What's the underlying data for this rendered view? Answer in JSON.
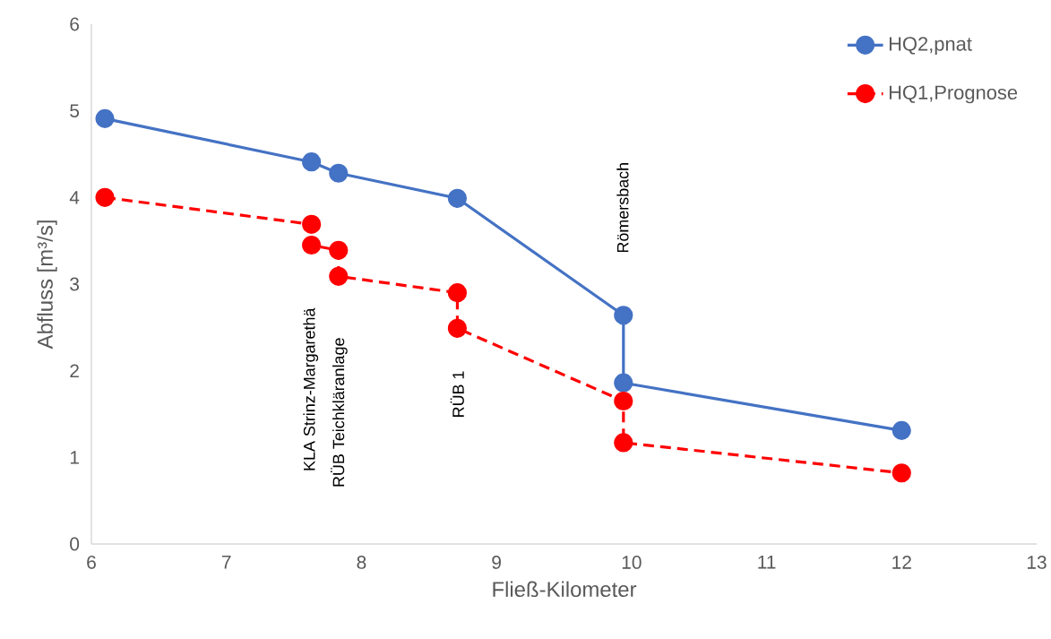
{
  "chart_data": {
    "type": "line",
    "xlabel": "Fließ-Kilometer",
    "ylabel": "Abfluss [m³/s]",
    "xlim": [
      6,
      13
    ],
    "xticks": [
      6,
      7,
      8,
      9,
      10,
      11,
      12,
      13
    ],
    "ylim": [
      0,
      6
    ],
    "yticks": [
      0,
      1,
      2,
      3,
      4,
      5,
      6
    ],
    "grid": false,
    "legend": "top right",
    "marker": "circle",
    "series": [
      {
        "name": "HQ2,pnat",
        "color": "#4472c4",
        "line_style": "solid",
        "x": [
          6.1,
          7.63,
          7.83,
          8.71,
          9.94,
          9.94,
          12.0
        ],
        "values": [
          4.91,
          4.41,
          4.28,
          3.99,
          2.64,
          1.86,
          1.31
        ]
      },
      {
        "name": "HQ1,Prognose",
        "color": "#ff0000",
        "line_style": "dashed",
        "x": [
          6.1,
          7.63,
          7.63,
          7.83,
          7.83,
          8.71,
          8.71,
          9.94,
          9.94,
          12.0
        ],
        "values": [
          4.0,
          3.69,
          3.45,
          3.39,
          3.09,
          2.9,
          2.49,
          1.65,
          1.17,
          0.82
        ]
      }
    ],
    "annotations": [
      "KLA Strinz-Margarethä",
      "RÜB Teichkläranlage",
      "RÜB 1",
      "Römersbach"
    ]
  }
}
